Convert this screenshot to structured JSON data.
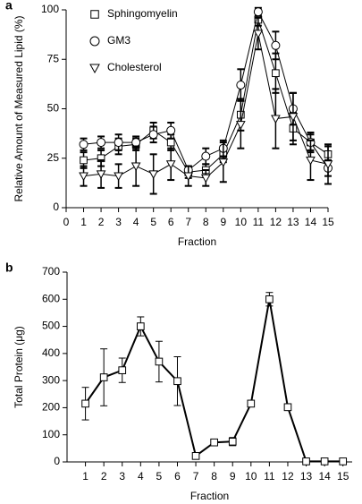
{
  "chart_data": [
    {
      "type": "line",
      "label": "a",
      "x_label": "Fraction",
      "y_label": "Relative Amount of Measured Lipid (%)",
      "x": [
        1,
        2,
        3,
        4,
        5,
        6,
        7,
        8,
        9,
        10,
        11,
        12,
        13,
        14,
        15
      ],
      "xlim": [
        0,
        15
      ],
      "xticks": [
        0,
        1,
        2,
        3,
        4,
        5,
        6,
        7,
        8,
        9,
        10,
        11,
        12,
        13,
        14,
        15
      ],
      "ylim": [
        0,
        100
      ],
      "yticks": [
        0,
        25,
        50,
        75,
        100
      ],
      "legend": "upper left",
      "series": [
        {
          "name": "Sphingomyelin",
          "color": "#000000",
          "marker": "square",
          "values": [
            24,
            25,
            31,
            32,
            39,
            33,
            18,
            19,
            27,
            47,
            95,
            68,
            40,
            33,
            27
          ],
          "errors": [
            4,
            4,
            4,
            3,
            4,
            4,
            3,
            3,
            4,
            8,
            3,
            10,
            8,
            5,
            4
          ]
        },
        {
          "name": "GM3",
          "color": "#000000",
          "marker": "circle",
          "values": [
            32,
            33,
            33,
            33,
            37,
            39,
            19,
            26,
            30,
            62,
            99,
            82,
            50,
            33,
            20
          ],
          "errors": [
            3,
            3,
            4,
            3,
            4,
            4,
            2,
            4,
            4,
            8,
            2,
            7,
            8,
            4,
            4
          ]
        },
        {
          "name": "Cholesterol",
          "color": "#000000",
          "marker": "triangle",
          "values": [
            16,
            17,
            16,
            21,
            17,
            22,
            16,
            15,
            23,
            42,
            88,
            45,
            46,
            24,
            22
          ],
          "errors": [
            5,
            7,
            6,
            10,
            10,
            8,
            5,
            4,
            10,
            12,
            8,
            15,
            12,
            10,
            10
          ]
        }
      ]
    },
    {
      "type": "line",
      "label": "b",
      "x_label": "Fraction",
      "y_label": "Total Protein (μg)",
      "x": [
        1,
        2,
        3,
        4,
        5,
        6,
        7,
        8,
        9,
        10,
        11,
        12,
        13,
        14,
        15
      ],
      "xlim": [
        0,
        15.5
      ],
      "xticks": [
        1,
        2,
        3,
        4,
        5,
        6,
        7,
        8,
        9,
        10,
        11,
        12,
        13,
        14,
        15
      ],
      "ylim": [
        0,
        700
      ],
      "yticks": [
        0,
        100,
        200,
        300,
        400,
        500,
        600,
        700
      ],
      "series": [
        {
          "color": "#000000",
          "marker": "square",
          "values": [
            215,
            312,
            338,
            500,
            370,
            298,
            22,
            72,
            75,
            215,
            600,
            202,
            2,
            2,
            2
          ],
          "errors": [
            60,
            105,
            45,
            35,
            75,
            90,
            8,
            6,
            15,
            12,
            25,
            8,
            2,
            2,
            2
          ]
        }
      ]
    }
  ]
}
